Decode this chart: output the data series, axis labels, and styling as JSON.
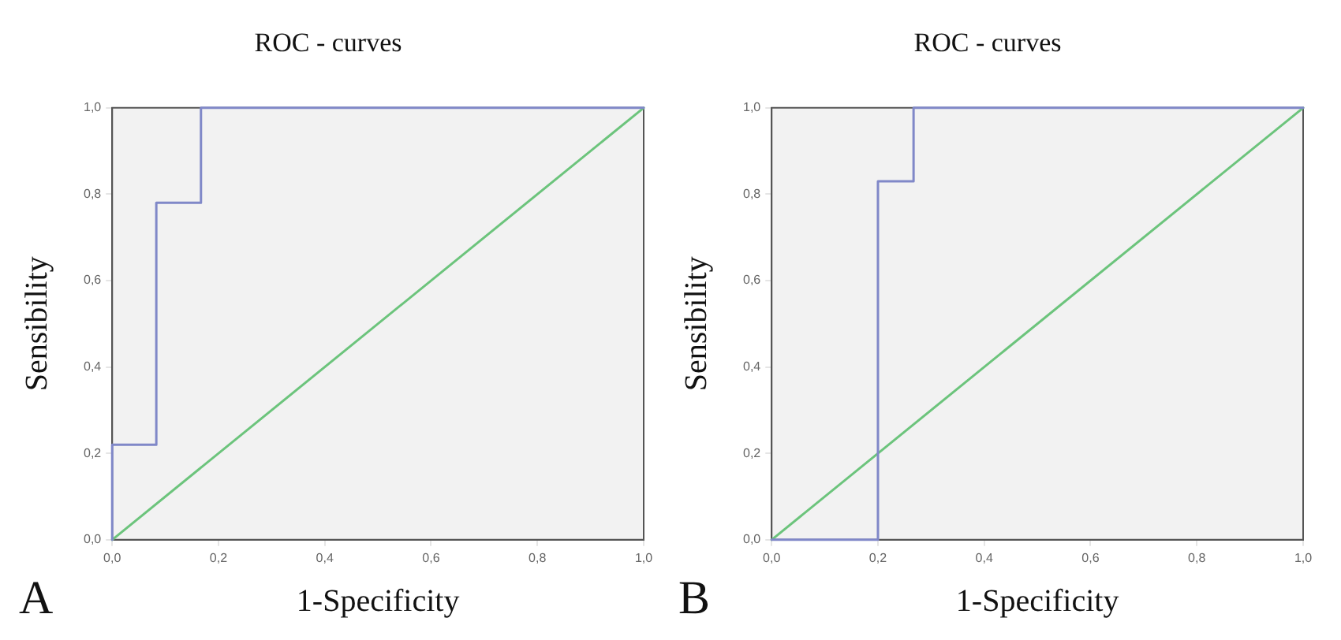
{
  "chart_data": [
    {
      "type": "line",
      "title": "ROC - curves",
      "xlabel": "1-Specificity",
      "ylabel": "Sensibility",
      "annotations": [
        "A"
      ],
      "xlim": [
        0,
        1
      ],
      "ylim": [
        0,
        1
      ],
      "xticks": [
        {
          "value": 0,
          "label": "0,0"
        },
        {
          "value": 0.2,
          "label": "0,2"
        },
        {
          "value": 0.4,
          "label": "0,4"
        },
        {
          "value": 0.6,
          "label": "0,6"
        },
        {
          "value": 0.8,
          "label": "0,8"
        },
        {
          "value": 1,
          "label": "1,0"
        }
      ],
      "yticks": [
        {
          "value": 0,
          "label": "0,0"
        },
        {
          "value": 0.2,
          "label": "0,2"
        },
        {
          "value": 0.4,
          "label": "0,4"
        },
        {
          "value": 0.6,
          "label": "0,6"
        },
        {
          "value": 0.8,
          "label": "0,8"
        },
        {
          "value": 1,
          "label": "1,0"
        }
      ],
      "legend": false,
      "marker": "none",
      "line_style": "solid",
      "series": [
        {
          "color": "#8088c8",
          "x": [
            0,
            0,
            0.083,
            0.083,
            0.167,
            0.167,
            1
          ],
          "values": [
            0,
            0.22,
            0.22,
            0.78,
            0.78,
            1,
            1
          ]
        },
        {
          "color": "#6cc47c",
          "x": [
            0,
            1
          ],
          "values": [
            0,
            1
          ]
        }
      ]
    },
    {
      "type": "line",
      "title": "ROC - curves",
      "xlabel": "1-Specificity",
      "ylabel": "Sensibility",
      "annotations": [
        "B"
      ],
      "xlim": [
        0,
        1
      ],
      "ylim": [
        0,
        1
      ],
      "xticks": [
        {
          "value": 0,
          "label": "0,0"
        },
        {
          "value": 0.2,
          "label": "0,2"
        },
        {
          "value": 0.4,
          "label": "0,4"
        },
        {
          "value": 0.6,
          "label": "0,6"
        },
        {
          "value": 0.8,
          "label": "0,8"
        },
        {
          "value": 1,
          "label": "1,0"
        }
      ],
      "yticks": [
        {
          "value": 0,
          "label": "0,0"
        },
        {
          "value": 0.2,
          "label": "0,2"
        },
        {
          "value": 0.4,
          "label": "0,4"
        },
        {
          "value": 0.6,
          "label": "0,6"
        },
        {
          "value": 0.8,
          "label": "0,8"
        },
        {
          "value": 1,
          "label": "1,0"
        }
      ],
      "legend": false,
      "marker": "none",
      "line_style": "solid",
      "series": [
        {
          "color": "#8088c8",
          "x": [
            0,
            0.2,
            0.2,
            0.267,
            0.267,
            1
          ],
          "values": [
            0,
            0,
            0.83,
            0.83,
            1,
            1
          ]
        },
        {
          "color": "#6cc47c",
          "x": [
            0,
            1
          ],
          "values": [
            0,
            1
          ]
        }
      ]
    }
  ]
}
